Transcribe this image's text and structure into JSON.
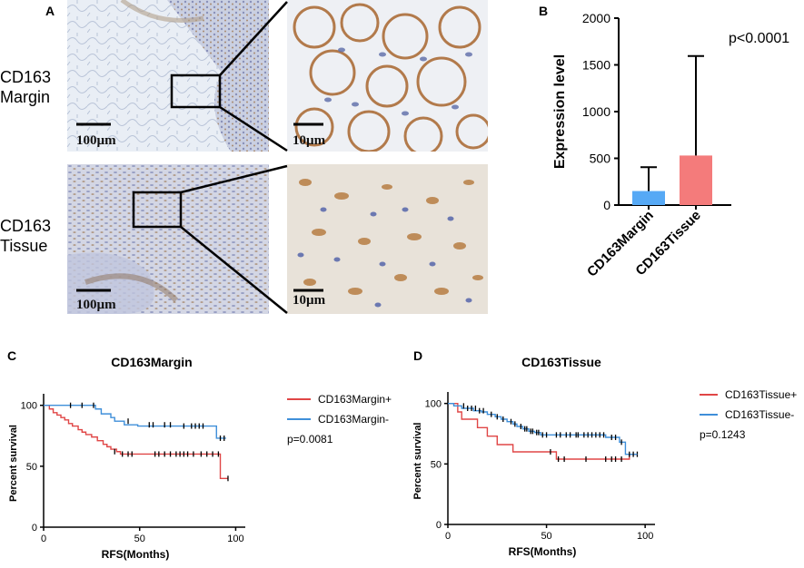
{
  "panel_a": {
    "letter": "A",
    "rows": [
      {
        "label": "CD163\nMargin",
        "scale_low": "100µm",
        "scale_high": "10µm"
      },
      {
        "label": "CD163\nTissue",
        "scale_low": "100µm",
        "scale_high": "10µm"
      }
    ]
  },
  "colors": {
    "blue": "#3f8fd9",
    "red": "#e04646",
    "bar_blue": "#56a9f5",
    "bar_red": "#f47b7b"
  },
  "chart_data": [
    {
      "id": "B",
      "letter": "B",
      "type": "bar",
      "categories": [
        "CD163Margin",
        "CD163Tissue"
      ],
      "values": [
        150,
        530
      ],
      "error_upper": [
        405,
        1595
      ],
      "ylabel": "Expression level",
      "ylim": [
        0,
        2000
      ],
      "yticks": [
        0,
        500,
        1000,
        1500,
        2000
      ],
      "annotation": "p<0.0001",
      "bar_colors": [
        "#56a9f5",
        "#f47b7b"
      ]
    },
    {
      "id": "C",
      "letter": "C",
      "type": "line",
      "title": "CD163Margin",
      "xlabel": "RFS(Months)",
      "ylabel": "Percent survival",
      "xlim": [
        0,
        105
      ],
      "ylim": [
        0,
        105
      ],
      "xticks": [
        0,
        50,
        100
      ],
      "yticks": [
        0,
        50,
        100
      ],
      "pvalue": "p=0.0081",
      "series": [
        {
          "name": "CD163Margin+",
          "color": "#e04646",
          "steps": [
            [
              0,
              100
            ],
            [
              3,
              97
            ],
            [
              5,
              94
            ],
            [
              7,
              92
            ],
            [
              9,
              90
            ],
            [
              11,
              88
            ],
            [
              13,
              85
            ],
            [
              15,
              83
            ],
            [
              18,
              80
            ],
            [
              20,
              78
            ],
            [
              22,
              76
            ],
            [
              25,
              74
            ],
            [
              28,
              71
            ],
            [
              31,
              68
            ],
            [
              33,
              66
            ],
            [
              35,
              64
            ],
            [
              38,
              62
            ],
            [
              40,
              60
            ],
            [
              92,
              60
            ],
            [
              92,
              40
            ],
            [
              96,
              40
            ]
          ],
          "censors": [
            [
              37,
              62
            ],
            [
              41,
              60
            ],
            [
              44,
              60
            ],
            [
              46,
              60
            ],
            [
              58,
              60
            ],
            [
              60,
              60
            ],
            [
              63,
              60
            ],
            [
              66,
              60
            ],
            [
              69,
              60
            ],
            [
              71,
              60
            ],
            [
              73,
              60
            ],
            [
              75,
              60
            ],
            [
              78,
              60
            ],
            [
              82,
              60
            ],
            [
              85,
              60
            ],
            [
              88,
              60
            ],
            [
              91,
              60
            ],
            [
              96,
              40
            ]
          ]
        },
        {
          "name": "CD163Margin-",
          "color": "#3f8fd9",
          "steps": [
            [
              0,
              100
            ],
            [
              27,
              100
            ],
            [
              27,
              97
            ],
            [
              30,
              97
            ],
            [
              30,
              93
            ],
            [
              35,
              93
            ],
            [
              35,
              90
            ],
            [
              37,
              90
            ],
            [
              37,
              87
            ],
            [
              42,
              87
            ],
            [
              42,
              84
            ],
            [
              49,
              84
            ],
            [
              49,
              83
            ],
            [
              90,
              83
            ],
            [
              90,
              73
            ],
            [
              95,
              73
            ]
          ],
          "censors": [
            [
              14,
              100
            ],
            [
              20,
              100
            ],
            [
              26,
              100
            ],
            [
              44,
              87
            ],
            [
              55,
              84
            ],
            [
              57,
              84
            ],
            [
              63,
              84
            ],
            [
              66,
              84
            ],
            [
              73,
              83
            ],
            [
              77,
              83
            ],
            [
              79,
              83
            ],
            [
              81,
              83
            ],
            [
              83,
              83
            ],
            [
              92,
              73
            ],
            [
              94,
              73
            ]
          ]
        }
      ]
    },
    {
      "id": "D",
      "letter": "D",
      "type": "line",
      "title": "CD163Tissue",
      "xlabel": "RFS(Months)",
      "ylabel": "Percent survival",
      "xlim": [
        0,
        105
      ],
      "ylim": [
        0,
        105
      ],
      "xticks": [
        0,
        50,
        100
      ],
      "yticks": [
        0,
        50,
        100
      ],
      "pvalue": "p=0.1243",
      "series": [
        {
          "name": "CD163Tissue+",
          "color": "#e04646",
          "steps": [
            [
              0,
              100
            ],
            [
              5,
              100
            ],
            [
              5,
              93
            ],
            [
              7,
              93
            ],
            [
              7,
              87
            ],
            [
              15,
              87
            ],
            [
              15,
              80
            ],
            [
              20,
              80
            ],
            [
              20,
              73
            ],
            [
              25,
              73
            ],
            [
              25,
              66
            ],
            [
              33,
              66
            ],
            [
              33,
              60
            ],
            [
              55,
              60
            ],
            [
              55,
              54
            ],
            [
              92,
              54
            ],
            [
              92,
              58
            ],
            [
              96,
              58
            ]
          ],
          "censors": [
            [
              52,
              60
            ],
            [
              56,
              54
            ],
            [
              59,
              54
            ],
            [
              70,
              54
            ],
            [
              80,
              54
            ],
            [
              83,
              54
            ],
            [
              85,
              54
            ],
            [
              88,
              54
            ],
            [
              96,
              58
            ]
          ]
        },
        {
          "name": "CD163Tissue-",
          "color": "#3f8fd9",
          "steps": [
            [
              0,
              100
            ],
            [
              3,
              100
            ],
            [
              3,
              98
            ],
            [
              7,
              98
            ],
            [
              7,
              96
            ],
            [
              13,
              96
            ],
            [
              13,
              94
            ],
            [
              17,
              94
            ],
            [
              17,
              93
            ],
            [
              20,
              93
            ],
            [
              20,
              91
            ],
            [
              24,
              91
            ],
            [
              24,
              89
            ],
            [
              27,
              89
            ],
            [
              27,
              87
            ],
            [
              30,
              87
            ],
            [
              30,
              85
            ],
            [
              33,
              85
            ],
            [
              33,
              83
            ],
            [
              35,
              83
            ],
            [
              35,
              81
            ],
            [
              38,
              81
            ],
            [
              38,
              79
            ],
            [
              41,
              79
            ],
            [
              41,
              77
            ],
            [
              44,
              77
            ],
            [
              44,
              76
            ],
            [
              47,
              76
            ],
            [
              47,
              74
            ],
            [
              80,
              74
            ],
            [
              80,
              72
            ],
            [
              87,
              72
            ],
            [
              87,
              68
            ],
            [
              90,
              68
            ],
            [
              90,
              58
            ],
            [
              96,
              58
            ]
          ],
          "censors": [
            [
              8,
              98
            ],
            [
              10,
              96
            ],
            [
              12,
              96
            ],
            [
              14,
              96
            ],
            [
              16,
              94
            ],
            [
              18,
              94
            ],
            [
              22,
              91
            ],
            [
              25,
              89
            ],
            [
              28,
              87
            ],
            [
              32,
              85
            ],
            [
              34,
              83
            ],
            [
              37,
              81
            ],
            [
              39,
              79
            ],
            [
              40,
              79
            ],
            [
              42,
              77
            ],
            [
              43,
              77
            ],
            [
              45,
              76
            ],
            [
              46,
              76
            ],
            [
              48,
              74
            ],
            [
              50,
              74
            ],
            [
              55,
              74
            ],
            [
              57,
              74
            ],
            [
              60,
              74
            ],
            [
              62,
              74
            ],
            [
              65,
              74
            ],
            [
              66,
              74
            ],
            [
              69,
              74
            ],
            [
              71,
              74
            ],
            [
              73,
              74
            ],
            [
              75,
              74
            ],
            [
              77,
              74
            ],
            [
              79,
              74
            ],
            [
              83,
              72
            ],
            [
              85,
              72
            ],
            [
              88,
              68
            ],
            [
              92,
              58
            ],
            [
              94,
              58
            ]
          ]
        }
      ]
    }
  ]
}
